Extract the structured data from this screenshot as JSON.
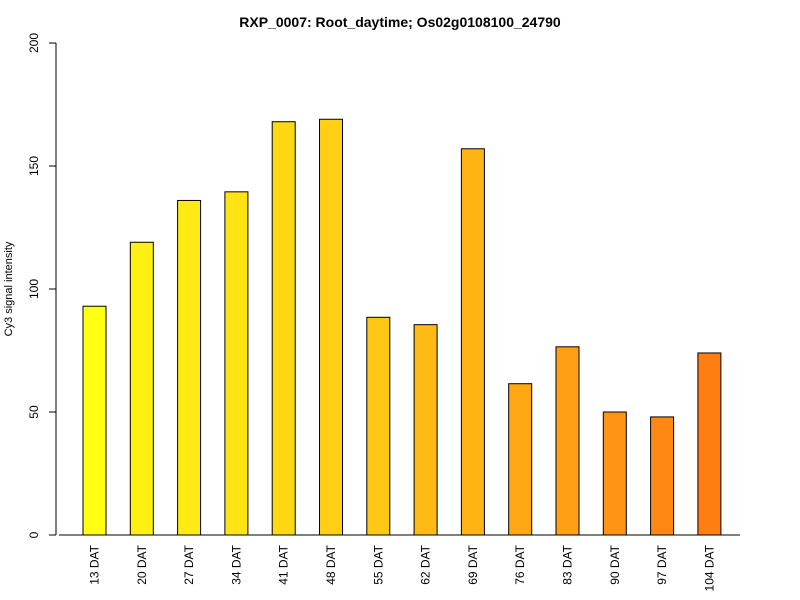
{
  "chart_data": {
    "type": "bar",
    "title": "RXP_0007: Root_daytime; Os02g0108100_24790",
    "xlabel": "",
    "ylabel": "Cy3 signal intensity",
    "ylim": [
      0,
      200
    ],
    "yticks": [
      0,
      50,
      100,
      150,
      200
    ],
    "categories": [
      "13 DAT",
      "20 DAT",
      "27 DAT",
      "34 DAT",
      "41 DAT",
      "48 DAT",
      "55 DAT",
      "62 DAT",
      "69 DAT",
      "76 DAT",
      "83 DAT",
      "90 DAT",
      "97 DAT",
      "104 DAT"
    ],
    "values": [
      93,
      119,
      136,
      139.5,
      168,
      169,
      88.5,
      85.5,
      157,
      61.5,
      76.5,
      50,
      48,
      74
    ],
    "colors": [
      "#ffff14",
      "#fff014",
      "#ffea14",
      "#ffe414",
      "#ffd814",
      "#ffcf14",
      "#ffc814",
      "#ffbb14",
      "#ffb414",
      "#ffa814",
      "#ff9f14",
      "#ff9414",
      "#ff8714",
      "#ff7e14"
    ],
    "grid": false,
    "legend": "none"
  }
}
